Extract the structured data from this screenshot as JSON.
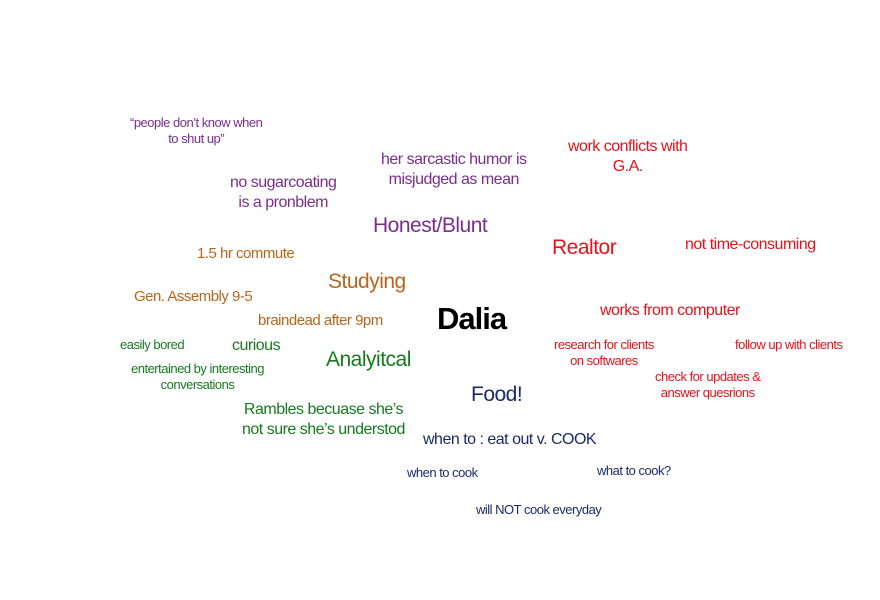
{
  "center": {
    "name": "Dalia",
    "color": "#000000"
  },
  "colors": {
    "purple": "#7b2d8e",
    "orange": "#b8651b",
    "red": "#e8101a",
    "green": "#157a1e",
    "navy": "#1a2a6c"
  },
  "clusters": {
    "honest": {
      "topic": "Honest/Blunt",
      "quote": [
        "“people don’t know when",
        "to shut up”"
      ],
      "sugarcoating": [
        "no sugarcoating",
        "is  a pronblem"
      ],
      "sarcasm": [
        "her sarcastic humor is",
        "misjudged as mean"
      ]
    },
    "studying": {
      "topic": "Studying",
      "commute": "1.5 hr commute",
      "schedule": "Gen. Assembly 9-5",
      "tired": "braindead after 9pm"
    },
    "realtor": {
      "topic": "Realtor",
      "conflict": [
        "work conflicts with",
        "G.A."
      ],
      "time": "not time-consuming",
      "computer": "works from computer",
      "research": [
        "research for clients",
        "on softwares"
      ],
      "followup": "follow up with clients",
      "updates": [
        "check for updates &",
        "answer quesrions"
      ]
    },
    "analytical": {
      "topic": "Analyitcal",
      "bored": "easily bored",
      "curious": "curious",
      "conversations": [
        "entertained by interesting",
        "conversations"
      ],
      "rambles": [
        "Rambles becuase she’s",
        "not sure she’s understod"
      ]
    },
    "food": {
      "topic": "Food!",
      "decision": "when to : eat out v.  COOK",
      "when": "when to cook",
      "what": "what to cook?",
      "frequency": "will NOT cook everyday"
    }
  }
}
